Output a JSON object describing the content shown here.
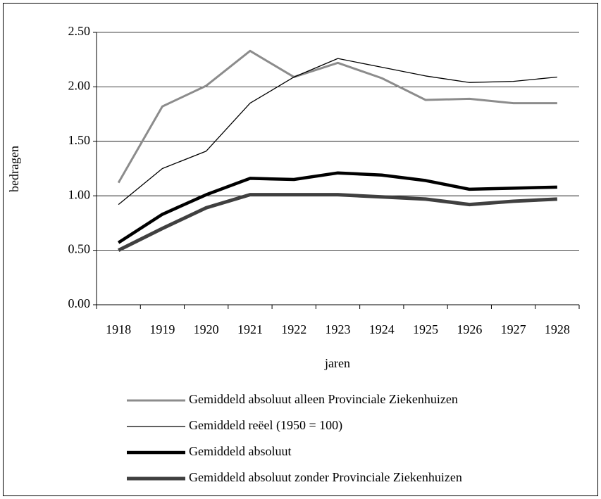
{
  "chart_data": {
    "type": "line",
    "categories": [
      "1918",
      "1919",
      "1920",
      "1921",
      "1922",
      "1923",
      "1924",
      "1925",
      "1926",
      "1927",
      "1928"
    ],
    "series": [
      {
        "name": "Gemiddeld absoluut alleen Provinciale Ziekenhuizen",
        "color": "#8c8c8c",
        "width": 3,
        "values": [
          1.12,
          1.82,
          2.01,
          2.33,
          2.09,
          2.22,
          2.08,
          1.88,
          1.89,
          1.85,
          1.85
        ]
      },
      {
        "name": "Gemiddeld reëel (1950 = 100)",
        "color": "#000000",
        "width": 1.3,
        "values": [
          0.92,
          1.25,
          1.41,
          1.85,
          2.09,
          2.26,
          2.18,
          2.1,
          2.04,
          2.05,
          2.09
        ]
      },
      {
        "name": "Gemiddeld absoluut",
        "color": "#000000",
        "width": 4.5,
        "values": [
          0.57,
          0.83,
          1.01,
          1.16,
          1.15,
          1.21,
          1.19,
          1.14,
          1.06,
          1.07,
          1.08
        ]
      },
      {
        "name": "Gemiddeld absoluut zonder Provinciale Ziekenhuizen",
        "color": "#404040",
        "width": 5,
        "values": [
          0.5,
          0.7,
          0.89,
          1.01,
          1.01,
          1.01,
          0.99,
          0.97,
          0.92,
          0.95,
          0.97
        ]
      }
    ],
    "xlabel": "jaren",
    "ylabel": "bedragen",
    "ylim": [
      0,
      2.5
    ],
    "yticks": [
      {
        "value": 0,
        "label": "0.00"
      },
      {
        "value": 0.5,
        "label": "0.50"
      },
      {
        "value": 1,
        "label": "1.00"
      },
      {
        "value": 1.5,
        "label": "1.50"
      },
      {
        "value": 2,
        "label": "2.00"
      },
      {
        "value": 2.5,
        "label": "2.50"
      }
    ],
    "grid": true,
    "legend": "bottom"
  }
}
